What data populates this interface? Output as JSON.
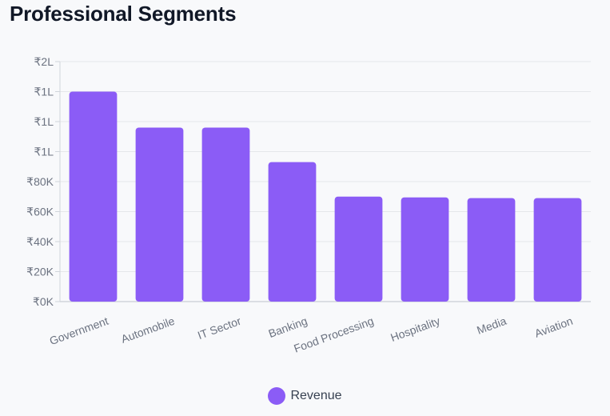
{
  "chart_data": {
    "type": "bar",
    "title": "Professional Segments",
    "categories": [
      "Government",
      "Automobile",
      "IT Sector",
      "Banking",
      "Food Processing",
      "Hospitality",
      "Media",
      "Aviation"
    ],
    "series": [
      {
        "name": "Revenue",
        "values": [
          140000,
          116000,
          116000,
          93000,
          70000,
          69500,
          69000,
          69000
        ]
      }
    ],
    "yticks": [
      {
        "value": 0,
        "label": "₹0K"
      },
      {
        "value": 20000,
        "label": "₹20K"
      },
      {
        "value": 40000,
        "label": "₹40K"
      },
      {
        "value": 60000,
        "label": "₹60K"
      },
      {
        "value": 80000,
        "label": "₹80K"
      },
      {
        "value": 100000,
        "label": "₹1L"
      },
      {
        "value": 120000,
        "label": "₹1L"
      },
      {
        "value": 140000,
        "label": "₹1L"
      },
      {
        "value": 160000,
        "label": "₹2L"
      }
    ],
    "ylim": [
      0,
      160000
    ],
    "grid": true,
    "legend_position": "bottom-center",
    "colors": {
      "bar": "#8b5cf6",
      "grid": "#e5e7eb",
      "axis": "#d1d5db"
    }
  }
}
